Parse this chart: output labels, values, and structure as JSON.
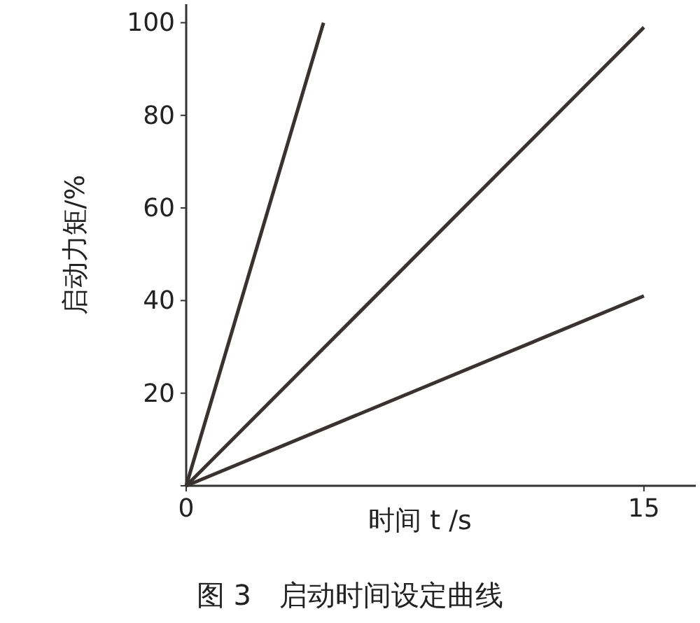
{
  "chart_data": {
    "type": "line",
    "title": "图 3　启动时间设定曲线",
    "xlabel": "时间 t /s",
    "ylabel": "启动力矩/%",
    "series": [
      {
        "color": "#3a3230",
        "x": [
          0,
          4.5
        ],
        "values": [
          0,
          100
        ]
      },
      {
        "color": "#3a3230",
        "x": [
          0,
          15
        ],
        "values": [
          0,
          99
        ]
      },
      {
        "color": "#3a3230",
        "x": [
          0,
          15
        ],
        "values": [
          0,
          41
        ]
      }
    ],
    "xlim": [
      0,
      16.7
    ],
    "ylim": [
      0,
      104
    ],
    "xticks": [
      0,
      15
    ],
    "yticks": [
      {
        "value": 0,
        "label": null
      },
      20,
      40,
      60,
      80,
      100
    ],
    "grid": false,
    "marker": "none",
    "line_style": "solid"
  }
}
